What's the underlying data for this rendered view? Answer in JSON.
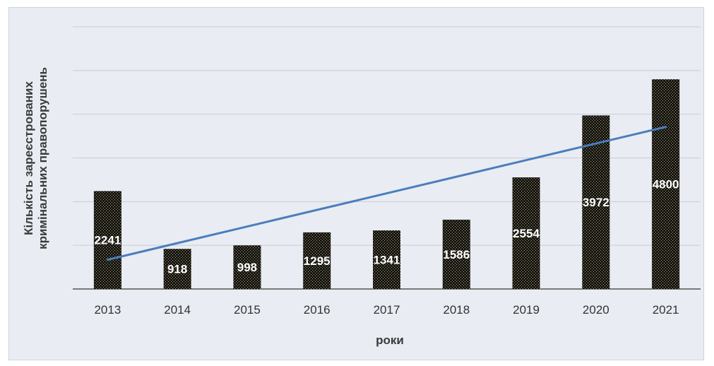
{
  "chart_data": {
    "type": "bar",
    "categories": [
      "2013",
      "2014",
      "2015",
      "2016",
      "2017",
      "2018",
      "2019",
      "2020",
      "2021"
    ],
    "series": [
      {
        "values": [
          2241,
          918,
          998,
          1295,
          1341,
          1586,
          2554,
          3972,
          4800
        ]
      }
    ],
    "trendline": {
      "type": "linear"
    },
    "title": "",
    "xlabel": "роки",
    "ylabel": "Кількість зареєстрованих кримінальних правопорушень",
    "ylim": [
      0,
      6000
    ],
    "grid": true,
    "legend": "none",
    "colors": {
      "bar": "#1a1a1a",
      "bar_pattern": "#b8a760",
      "trend": "#4a7ebb",
      "gridline": "#c9ccd2",
      "axis": "#7a7a7a"
    }
  }
}
